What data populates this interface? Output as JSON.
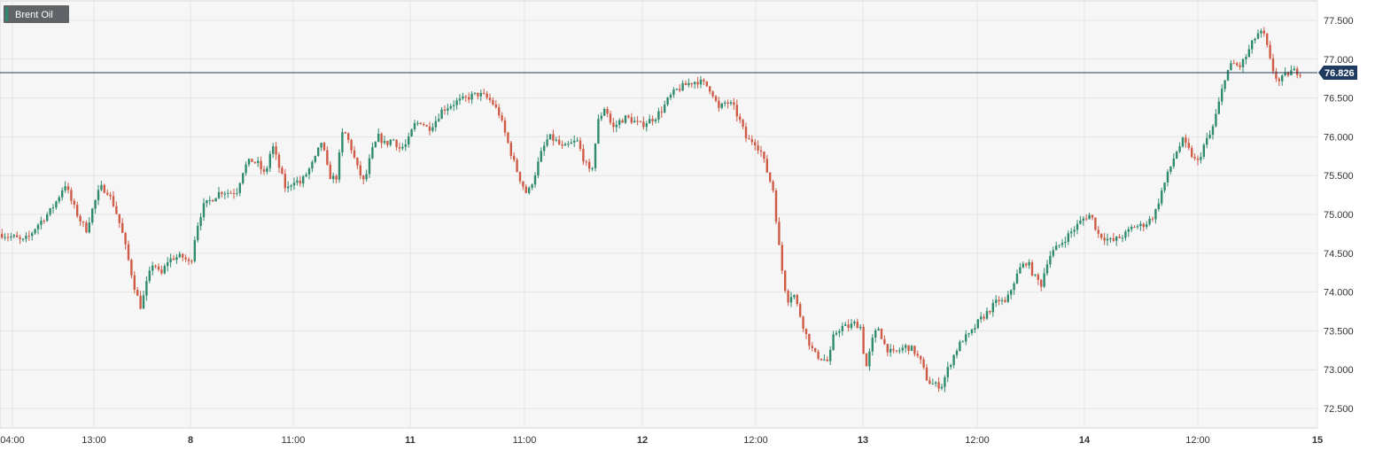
{
  "chart_data": {
    "type": "candlestick",
    "title": "Brent Oil",
    "current_price": "76.826",
    "ylim": [
      72.3,
      77.9
    ],
    "y_ticks": [
      "72.500",
      "73.000",
      "73.500",
      "74.000",
      "74.500",
      "75.000",
      "75.500",
      "76.000",
      "76.500",
      "77.000",
      "77.500"
    ],
    "x_ticks": [
      {
        "label": "04:00",
        "bold": false
      },
      {
        "label": "13:00",
        "bold": false
      },
      {
        "label": "8",
        "bold": true
      },
      {
        "label": "11:00",
        "bold": false
      },
      {
        "label": "11",
        "bold": true
      },
      {
        "label": "11:00",
        "bold": false
      },
      {
        "label": "12",
        "bold": true
      },
      {
        "label": "12:00",
        "bold": false
      },
      {
        "label": "13",
        "bold": true
      },
      {
        "label": "12:00",
        "bold": false
      },
      {
        "label": "14",
        "bold": true
      },
      {
        "label": "12:00",
        "bold": false
      },
      {
        "label": "15",
        "bold": true
      }
    ],
    "series": [
      {
        "name": "Brent Oil",
        "path": [
          [
            0,
            74.75
          ],
          [
            8,
            74.72
          ],
          [
            16,
            74.7
          ],
          [
            24,
            74.65
          ],
          [
            32,
            74.72
          ],
          [
            40,
            74.85
          ],
          [
            48,
            74.95
          ],
          [
            56,
            75.05
          ],
          [
            64,
            75.2
          ],
          [
            72,
            75.4
          ],
          [
            80,
            75.15
          ],
          [
            88,
            74.95
          ],
          [
            96,
            74.8
          ],
          [
            104,
            75.1
          ],
          [
            112,
            75.35
          ],
          [
            120,
            75.3
          ],
          [
            128,
            75.1
          ],
          [
            136,
            74.8
          ],
          [
            144,
            74.4
          ],
          [
            152,
            74.0
          ],
          [
            158,
            73.8
          ],
          [
            164,
            74.1
          ],
          [
            172,
            74.4
          ],
          [
            180,
            74.2
          ],
          [
            188,
            74.4
          ],
          [
            196,
            74.45
          ],
          [
            206,
            74.45
          ],
          [
            214,
            74.35
          ],
          [
            220,
            74.8
          ],
          [
            228,
            75.1
          ],
          [
            238,
            75.2
          ],
          [
            248,
            75.3
          ],
          [
            258,
            75.28
          ],
          [
            266,
            75.3
          ],
          [
            274,
            75.6
          ],
          [
            282,
            75.7
          ],
          [
            290,
            75.65
          ],
          [
            298,
            75.5
          ],
          [
            306,
            75.9
          ],
          [
            314,
            75.6
          ],
          [
            322,
            75.3
          ],
          [
            330,
            75.45
          ],
          [
            338,
            75.4
          ],
          [
            346,
            75.55
          ],
          [
            354,
            75.7
          ],
          [
            362,
            75.95
          ],
          [
            370,
            75.5
          ],
          [
            378,
            75.45
          ],
          [
            386,
            76.1
          ],
          [
            394,
            75.9
          ],
          [
            402,
            75.6
          ],
          [
            410,
            75.4
          ],
          [
            418,
            75.8
          ],
          [
            426,
            76.0
          ],
          [
            434,
            75.9
          ],
          [
            442,
            75.98
          ],
          [
            450,
            75.85
          ],
          [
            458,
            75.9
          ],
          [
            466,
            76.15
          ],
          [
            474,
            76.2
          ],
          [
            482,
            76.1
          ],
          [
            490,
            76.2
          ],
          [
            498,
            76.35
          ],
          [
            506,
            76.4
          ],
          [
            514,
            76.45
          ],
          [
            522,
            76.48
          ],
          [
            530,
            76.52
          ],
          [
            538,
            76.55
          ],
          [
            546,
            76.52
          ],
          [
            554,
            76.45
          ],
          [
            562,
            76.3
          ],
          [
            570,
            76.0
          ],
          [
            578,
            75.7
          ],
          [
            586,
            75.45
          ],
          [
            594,
            75.25
          ],
          [
            602,
            75.5
          ],
          [
            610,
            75.8
          ],
          [
            618,
            76.0
          ],
          [
            626,
            75.95
          ],
          [
            634,
            75.85
          ],
          [
            642,
            75.9
          ],
          [
            650,
            75.95
          ],
          [
            658,
            75.7
          ],
          [
            666,
            75.5
          ],
          [
            674,
            76.2
          ],
          [
            682,
            76.4
          ],
          [
            690,
            76.1
          ],
          [
            698,
            76.2
          ],
          [
            706,
            76.25
          ],
          [
            714,
            76.2
          ],
          [
            722,
            76.15
          ],
          [
            730,
            76.2
          ],
          [
            738,
            76.25
          ],
          [
            746,
            76.35
          ],
          [
            754,
            76.5
          ],
          [
            762,
            76.6
          ],
          [
            770,
            76.65
          ],
          [
            778,
            76.7
          ],
          [
            786,
            76.72
          ],
          [
            794,
            76.68
          ],
          [
            802,
            76.6
          ],
          [
            810,
            76.35
          ],
          [
            818,
            76.45
          ],
          [
            826,
            76.4
          ],
          [
            834,
            76.2
          ],
          [
            842,
            75.95
          ],
          [
            850,
            75.95
          ],
          [
            858,
            75.8
          ],
          [
            866,
            75.5
          ],
          [
            872,
            75.3
          ],
          [
            876,
            74.8
          ],
          [
            880,
            74.4
          ],
          [
            884,
            74.1
          ],
          [
            888,
            73.9
          ],
          [
            894,
            74.0
          ],
          [
            902,
            73.7
          ],
          [
            910,
            73.4
          ],
          [
            918,
            73.2
          ],
          [
            926,
            73.15
          ],
          [
            934,
            73.1
          ],
          [
            940,
            73.45
          ],
          [
            948,
            73.55
          ],
          [
            956,
            73.55
          ],
          [
            964,
            73.6
          ],
          [
            970,
            73.55
          ],
          [
            976,
            73.0
          ],
          [
            984,
            73.4
          ],
          [
            990,
            73.55
          ],
          [
            998,
            73.3
          ],
          [
            1006,
            73.2
          ],
          [
            1014,
            73.25
          ],
          [
            1022,
            73.3
          ],
          [
            1030,
            73.25
          ],
          [
            1038,
            73.1
          ],
          [
            1046,
            72.85
          ],
          [
            1054,
            72.8
          ],
          [
            1062,
            72.8
          ],
          [
            1070,
            73.05
          ],
          [
            1078,
            73.25
          ],
          [
            1086,
            73.4
          ],
          [
            1094,
            73.45
          ],
          [
            1102,
            73.6
          ],
          [
            1110,
            73.7
          ],
          [
            1118,
            73.8
          ],
          [
            1126,
            73.9
          ],
          [
            1134,
            73.85
          ],
          [
            1142,
            74.1
          ],
          [
            1150,
            74.3
          ],
          [
            1158,
            74.4
          ],
          [
            1166,
            74.2
          ],
          [
            1174,
            74.1
          ],
          [
            1182,
            74.45
          ],
          [
            1190,
            74.55
          ],
          [
            1198,
            74.65
          ],
          [
            1206,
            74.75
          ],
          [
            1214,
            74.85
          ],
          [
            1222,
            74.95
          ],
          [
            1230,
            75.0
          ],
          [
            1238,
            74.75
          ],
          [
            1246,
            74.7
          ],
          [
            1254,
            74.65
          ],
          [
            1262,
            74.7
          ],
          [
            1270,
            74.75
          ],
          [
            1278,
            74.85
          ],
          [
            1286,
            74.85
          ],
          [
            1294,
            74.9
          ],
          [
            1302,
            75.0
          ],
          [
            1310,
            75.3
          ],
          [
            1318,
            75.55
          ],
          [
            1326,
            75.8
          ],
          [
            1334,
            75.95
          ],
          [
            1342,
            75.8
          ],
          [
            1350,
            75.65
          ],
          [
            1358,
            75.9
          ],
          [
            1366,
            76.05
          ],
          [
            1374,
            76.4
          ],
          [
            1382,
            76.8
          ],
          [
            1390,
            76.95
          ],
          [
            1398,
            76.9
          ],
          [
            1406,
            77.05
          ],
          [
            1414,
            77.25
          ],
          [
            1420,
            77.35
          ],
          [
            1426,
            77.3
          ],
          [
            1434,
            76.9
          ],
          [
            1442,
            76.7
          ],
          [
            1450,
            76.8
          ],
          [
            1458,
            76.85
          ],
          [
            1466,
            76.83
          ],
          [
            1470,
            76.82
          ]
        ]
      }
    ],
    "colors": {
      "up": "#2e8b6e",
      "down": "#cf5a46",
      "price_line": "#1f3a5f",
      "badge": "#1f3a5f",
      "grid": "#e4e4e4",
      "plot_bg": "#f6f6f6"
    },
    "grid": true
  }
}
